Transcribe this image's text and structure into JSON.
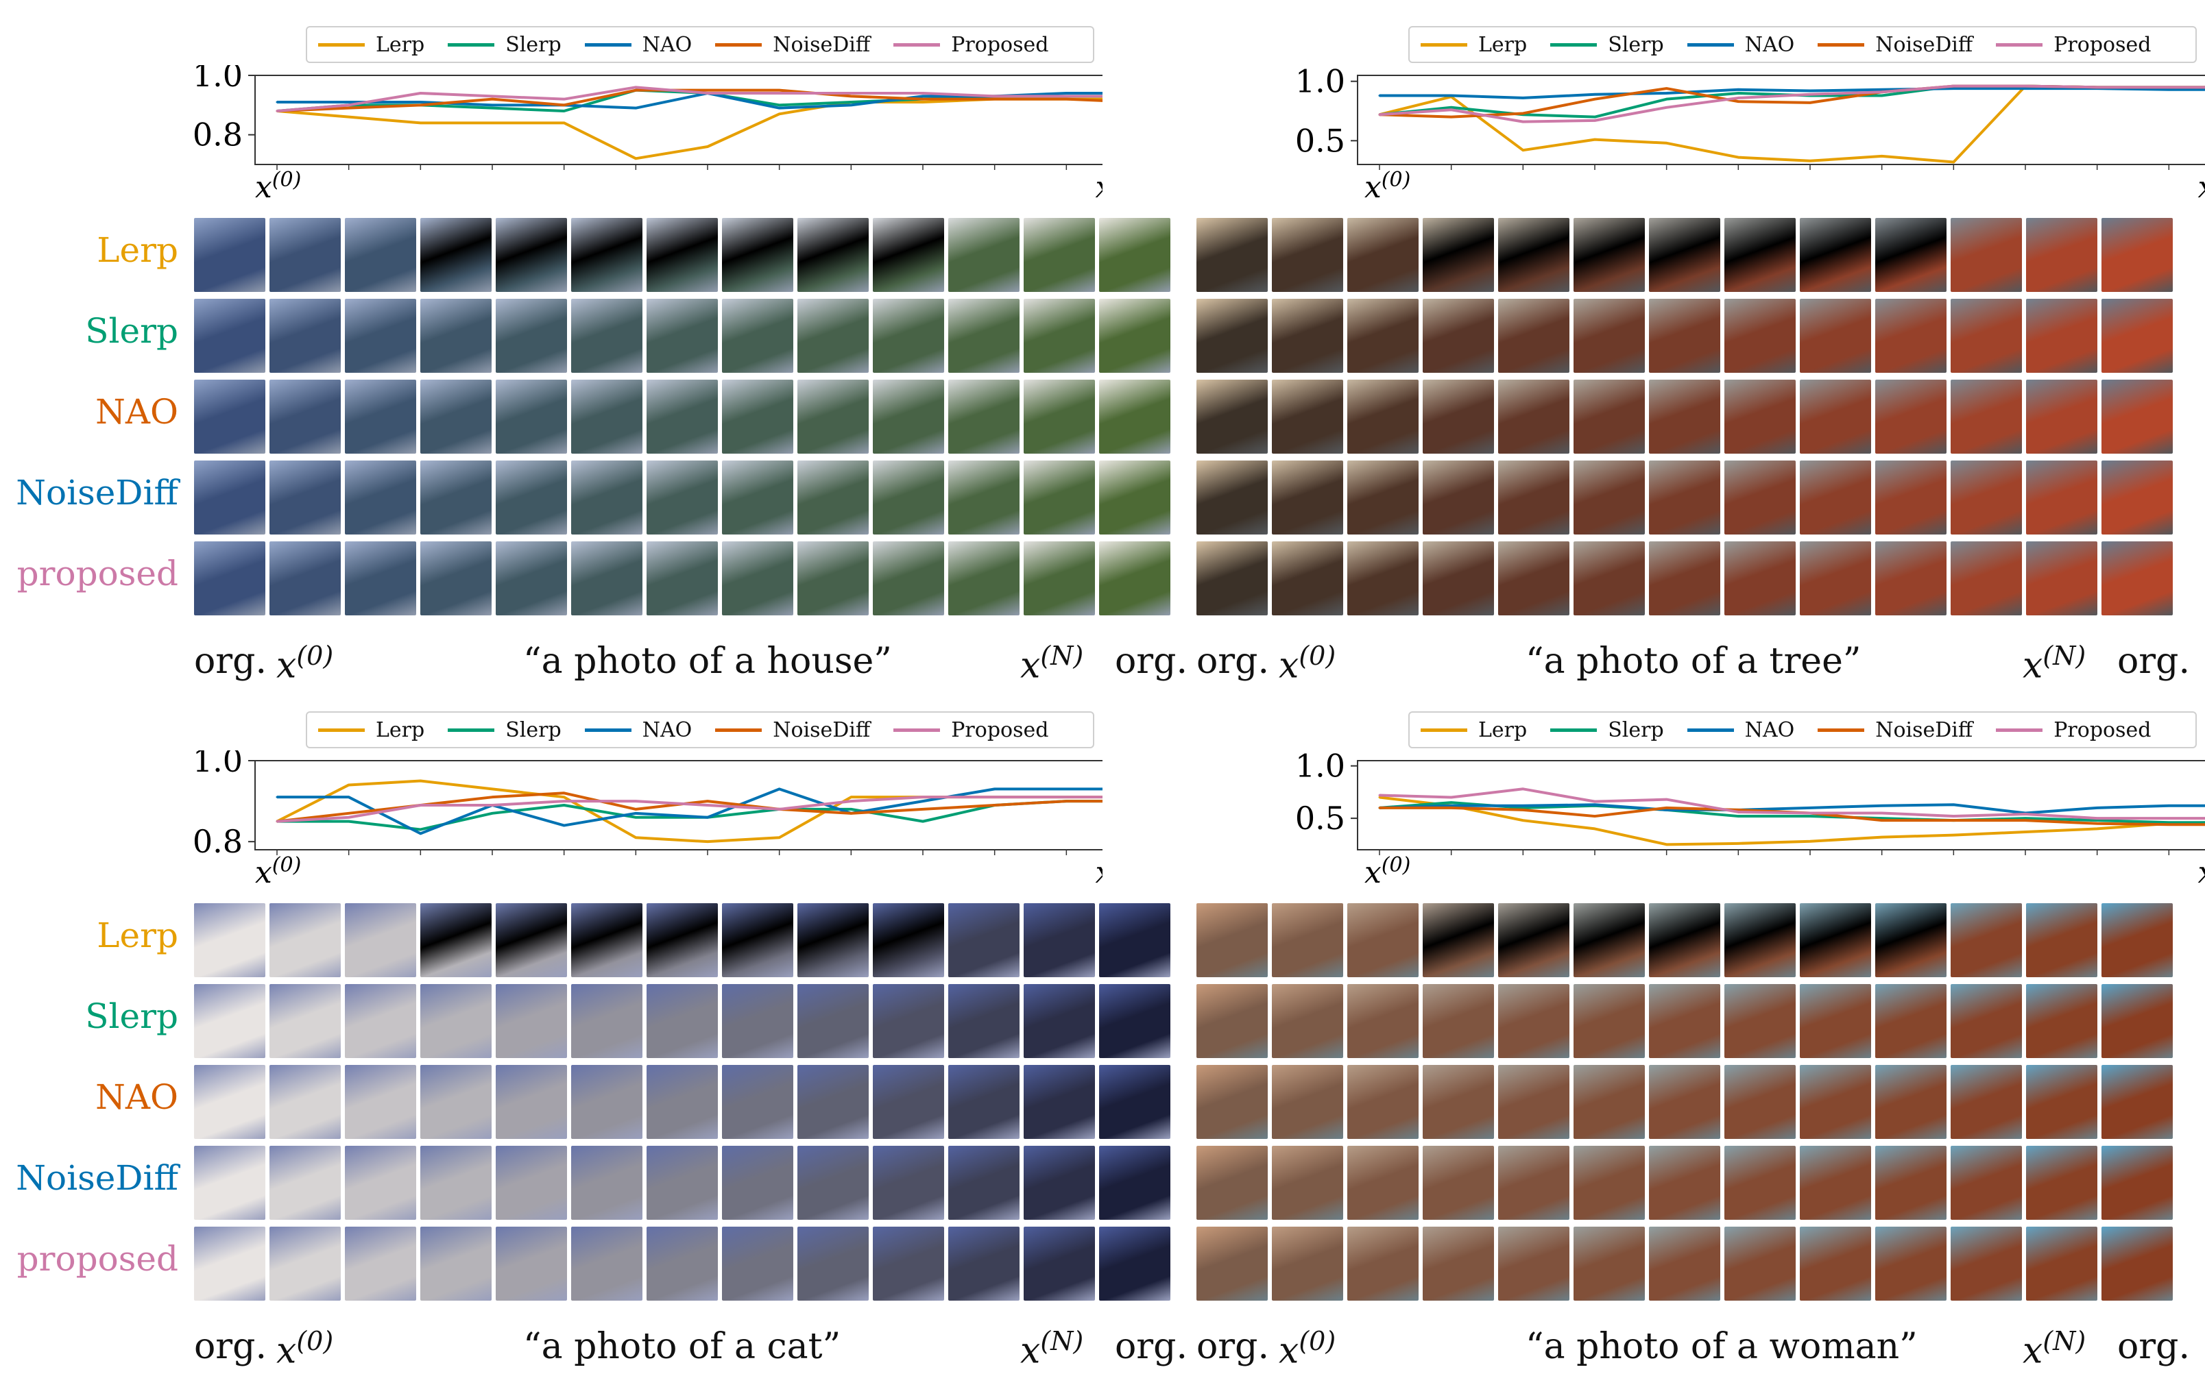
{
  "legend": {
    "items": [
      {
        "name": "Lerp",
        "color": "#E69F00"
      },
      {
        "name": "Slerp",
        "color": "#009E73"
      },
      {
        "name": "NAO",
        "color": "#0072B2"
      },
      {
        "name": "NoiseDiff",
        "color": "#D55E00"
      },
      {
        "name": "Proposed",
        "color": "#CC79A7"
      }
    ]
  },
  "row_labels": [
    {
      "text": "Lerp",
      "color": "#E69F00"
    },
    {
      "text": "Slerp",
      "color": "#009E73"
    },
    {
      "text": "NAO",
      "color": "#D55E00"
    },
    {
      "text": "NoiseDiff",
      "color": "#0072B2"
    },
    {
      "text": "proposed",
      "color": "#CC79A7"
    }
  ],
  "caption_common": {
    "org": "org.",
    "x0_base": "x",
    "x0_sup": "(0)",
    "xN_base": "x",
    "xN_sup": "(N)"
  },
  "panels": [
    {
      "caption": "“a photo of a house”",
      "tone": [
        "#3a4f7a",
        "#8fa2c8",
        "#4d6a35",
        "#e8e6e0"
      ]
    },
    {
      "caption": "“a photo of a tree”",
      "tone": [
        "#3b3128",
        "#d8c3a5",
        "#b4462a",
        "#6b7c8e"
      ]
    },
    {
      "caption": "“a photo of a cat”",
      "tone": [
        "#e8e4e2",
        "#7d88b5",
        "#1b1f3a",
        "#4a5a9a"
      ]
    },
    {
      "caption": "“a photo of a woman”",
      "tone": [
        "#7b5c4a",
        "#c79a7a",
        "#8a3e22",
        "#5aa3c8"
      ]
    }
  ],
  "chart_data": [
    {
      "type": "line",
      "title": "house",
      "x": [
        0,
        1,
        2,
        3,
        4,
        5,
        6,
        7,
        8,
        9,
        10,
        11,
        12
      ],
      "xlabel_left": "x(0)",
      "xlabel_right": "x(N)",
      "ylim": [
        0.7,
        1.0
      ],
      "yticks": [
        "0.8",
        "1.0"
      ],
      "series": [
        {
          "name": "Lerp",
          "values": [
            0.88,
            0.86,
            0.84,
            0.84,
            0.84,
            0.72,
            0.76,
            0.87,
            0.91,
            0.91,
            0.92,
            0.92,
            0.92
          ]
        },
        {
          "name": "Slerp",
          "values": [
            0.88,
            0.9,
            0.9,
            0.89,
            0.88,
            0.95,
            0.94,
            0.9,
            0.91,
            0.92,
            0.93,
            0.93,
            0.93
          ]
        },
        {
          "name": "NAO",
          "values": [
            0.91,
            0.91,
            0.91,
            0.9,
            0.9,
            0.89,
            0.94,
            0.89,
            0.9,
            0.93,
            0.93,
            0.94,
            0.94
          ]
        },
        {
          "name": "NoiseDiff",
          "values": [
            0.88,
            0.89,
            0.9,
            0.92,
            0.9,
            0.95,
            0.95,
            0.95,
            0.93,
            0.92,
            0.92,
            0.92,
            0.91
          ]
        },
        {
          "name": "Proposed",
          "values": [
            0.88,
            0.9,
            0.94,
            0.93,
            0.92,
            0.96,
            0.94,
            0.94,
            0.94,
            0.94,
            0.93,
            0.93,
            0.93
          ]
        }
      ]
    },
    {
      "type": "line",
      "title": "tree",
      "x": [
        0,
        1,
        2,
        3,
        4,
        5,
        6,
        7,
        8,
        9,
        10,
        11,
        12
      ],
      "xlabel_left": "x(0)",
      "xlabel_right": "x(N)",
      "ylim": [
        0.3,
        1.05
      ],
      "yticks": [
        "0.5",
        "1.0"
      ],
      "series": [
        {
          "name": "Lerp",
          "values": [
            0.72,
            0.87,
            0.42,
            0.51,
            0.48,
            0.36,
            0.33,
            0.37,
            0.32,
            0.96,
            0.95,
            0.95,
            0.95
          ]
        },
        {
          "name": "Slerp",
          "values": [
            0.72,
            0.78,
            0.72,
            0.7,
            0.85,
            0.9,
            0.88,
            0.88,
            0.96,
            0.96,
            0.95,
            0.95,
            0.95
          ]
        },
        {
          "name": "NAO",
          "values": [
            0.88,
            0.88,
            0.86,
            0.89,
            0.9,
            0.93,
            0.92,
            0.93,
            0.94,
            0.94,
            0.94,
            0.93,
            0.93
          ]
        },
        {
          "name": "NoiseDiff",
          "values": [
            0.72,
            0.7,
            0.73,
            0.85,
            0.94,
            0.83,
            0.82,
            0.91,
            0.96,
            0.96,
            0.95,
            0.95,
            0.95
          ]
        },
        {
          "name": "Proposed",
          "values": [
            0.72,
            0.76,
            0.66,
            0.67,
            0.78,
            0.86,
            0.89,
            0.91,
            0.96,
            0.96,
            0.95,
            0.95,
            0.95
          ]
        }
      ]
    },
    {
      "type": "line",
      "title": "cat",
      "x": [
        0,
        1,
        2,
        3,
        4,
        5,
        6,
        7,
        8,
        9,
        10,
        11,
        12
      ],
      "xlabel_left": "x(0)",
      "xlabel_right": "x(N)",
      "ylim": [
        0.78,
        1.0
      ],
      "yticks": [
        "0.8",
        "1.0"
      ],
      "series": [
        {
          "name": "Lerp",
          "values": [
            0.85,
            0.94,
            0.95,
            0.93,
            0.91,
            0.81,
            0.8,
            0.81,
            0.91,
            0.91,
            0.91,
            0.91,
            0.91
          ]
        },
        {
          "name": "Slerp",
          "values": [
            0.85,
            0.85,
            0.83,
            0.87,
            0.89,
            0.86,
            0.86,
            0.88,
            0.88,
            0.85,
            0.89,
            0.9,
            0.9
          ]
        },
        {
          "name": "NAO",
          "values": [
            0.91,
            0.91,
            0.82,
            0.89,
            0.84,
            0.87,
            0.86,
            0.93,
            0.87,
            0.9,
            0.93,
            0.93,
            0.93
          ]
        },
        {
          "name": "NoiseDiff",
          "values": [
            0.85,
            0.87,
            0.89,
            0.91,
            0.92,
            0.88,
            0.9,
            0.88,
            0.87,
            0.88,
            0.89,
            0.9,
            0.9
          ]
        },
        {
          "name": "Proposed",
          "values": [
            0.85,
            0.86,
            0.89,
            0.89,
            0.9,
            0.9,
            0.89,
            0.88,
            0.9,
            0.91,
            0.91,
            0.91,
            0.91
          ]
        }
      ]
    },
    {
      "type": "line",
      "title": "woman",
      "x": [
        0,
        1,
        2,
        3,
        4,
        5,
        6,
        7,
        8,
        9,
        10,
        11,
        12
      ],
      "xlabel_left": "x(0)",
      "xlabel_right": "x(N)",
      "ylim": [
        0.2,
        1.05
      ],
      "yticks": [
        "0.5",
        "1.0"
      ],
      "series": [
        {
          "name": "Lerp",
          "values": [
            0.7,
            0.62,
            0.48,
            0.4,
            0.25,
            0.26,
            0.28,
            0.32,
            0.34,
            0.37,
            0.4,
            0.45,
            0.47
          ]
        },
        {
          "name": "Slerp",
          "values": [
            0.6,
            0.65,
            0.6,
            0.62,
            0.58,
            0.52,
            0.52,
            0.5,
            0.48,
            0.5,
            0.48,
            0.46,
            0.46
          ]
        },
        {
          "name": "NAO",
          "values": [
            0.6,
            0.62,
            0.62,
            0.63,
            0.58,
            0.58,
            0.6,
            0.62,
            0.63,
            0.55,
            0.6,
            0.62,
            0.62
          ]
        },
        {
          "name": "NoiseDiff",
          "values": [
            0.6,
            0.6,
            0.58,
            0.52,
            0.6,
            0.58,
            0.55,
            0.48,
            0.48,
            0.48,
            0.45,
            0.44,
            0.44
          ]
        },
        {
          "name": "Proposed",
          "values": [
            0.72,
            0.7,
            0.78,
            0.66,
            0.68,
            0.56,
            0.55,
            0.55,
            0.52,
            0.54,
            0.5,
            0.5,
            0.5
          ]
        }
      ]
    }
  ]
}
